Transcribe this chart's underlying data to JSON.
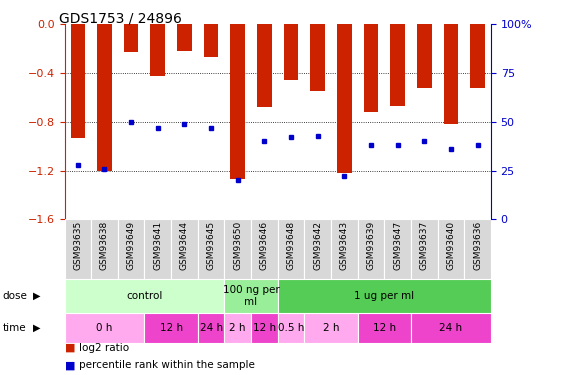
{
  "title": "GDS1753 / 24896",
  "samples": [
    "GSM93635",
    "GSM93638",
    "GSM93649",
    "GSM93641",
    "GSM93644",
    "GSM93645",
    "GSM93650",
    "GSM93646",
    "GSM93648",
    "GSM93642",
    "GSM93643",
    "GSM93639",
    "GSM93647",
    "GSM93637",
    "GSM93640",
    "GSM93636"
  ],
  "log2_ratio": [
    -0.93,
    -1.2,
    -0.23,
    -0.42,
    -0.22,
    -0.27,
    -1.27,
    -0.68,
    -0.46,
    -0.55,
    -1.22,
    -0.72,
    -0.67,
    -0.52,
    -0.82,
    -0.52
  ],
  "percentile_rank": [
    28,
    26,
    50,
    47,
    49,
    47,
    20,
    40,
    42,
    43,
    22,
    38,
    38,
    40,
    36,
    38
  ],
  "bar_color": "#cc2200",
  "dot_color": "#0000cc",
  "ylim_left": [
    -1.6,
    0.0
  ],
  "ylim_right": [
    0,
    100
  ],
  "yticks_left": [
    0.0,
    -0.4,
    -0.8,
    -1.2,
    -1.6
  ],
  "yticks_right": [
    0,
    25,
    50,
    75,
    100
  ],
  "dose_groups": [
    {
      "label": "control",
      "start": 0,
      "end": 6,
      "color": "#ccffcc"
    },
    {
      "label": "100 ng per\nml",
      "start": 6,
      "end": 8,
      "color": "#99ee99"
    },
    {
      "label": "1 ug per ml",
      "start": 8,
      "end": 16,
      "color": "#55cc55"
    }
  ],
  "time_groups": [
    {
      "label": "0 h",
      "start": 0,
      "end": 3,
      "color": "#ffaaee"
    },
    {
      "label": "12 h",
      "start": 3,
      "end": 5,
      "color": "#ee44cc"
    },
    {
      "label": "24 h",
      "start": 5,
      "end": 6,
      "color": "#ee44cc"
    },
    {
      "label": "2 h",
      "start": 6,
      "end": 7,
      "color": "#ffaaee"
    },
    {
      "label": "12 h",
      "start": 7,
      "end": 8,
      "color": "#ee44cc"
    },
    {
      "label": "0.5 h",
      "start": 8,
      "end": 9,
      "color": "#ffaaee"
    },
    {
      "label": "2 h",
      "start": 9,
      "end": 11,
      "color": "#ffaaee"
    },
    {
      "label": "12 h",
      "start": 11,
      "end": 13,
      "color": "#ee44cc"
    },
    {
      "label": "24 h",
      "start": 13,
      "end": 16,
      "color": "#ee44cc"
    }
  ],
  "tick_color_left": "#cc2200",
  "tick_color_right": "#0000cc",
  "bar_width": 0.55,
  "title_fontsize": 10,
  "axis_fontsize": 8,
  "label_fontsize": 6.5,
  "row_fontsize": 7.5
}
